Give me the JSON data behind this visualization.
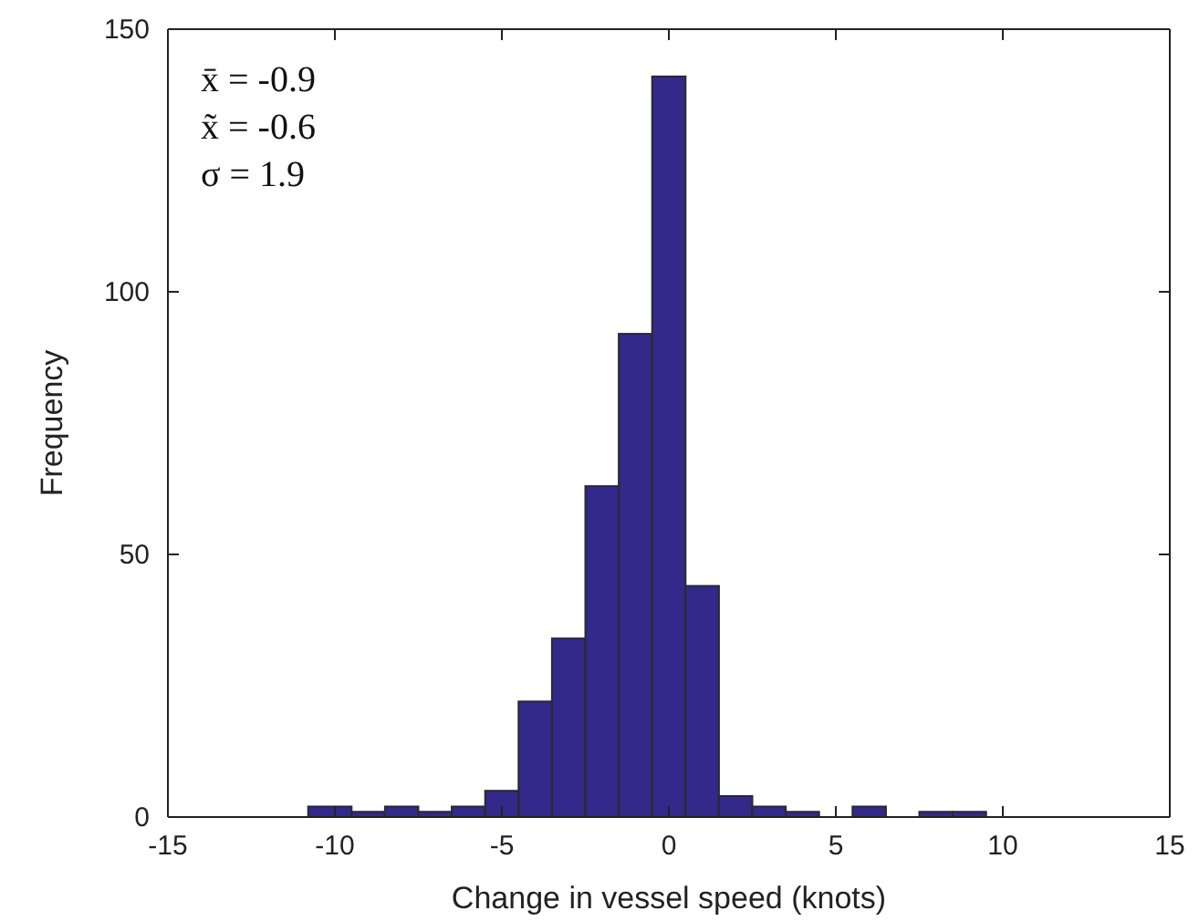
{
  "chart_data": {
    "type": "histogram",
    "xlabel": "Change in vessel speed (knots)",
    "ylabel": "Frequency",
    "annotations": [
      "x̄ = -0.9",
      "x̃ = -0.6",
      "σ = 1.9"
    ],
    "bins": [
      -10.8,
      -9.5,
      -8.5,
      -7.5,
      -6.5,
      -5.5,
      -4.5,
      -3.5,
      -2.5,
      -1.5,
      -0.5,
      0.5,
      1.5,
      2.5,
      3.5,
      4.5,
      5.5,
      6.5,
      7.5,
      8.5,
      9.5
    ],
    "values": [
      2,
      1,
      2,
      1,
      2,
      5,
      22,
      34,
      63,
      92,
      141,
      44,
      4,
      2,
      1,
      0,
      2,
      0,
      1,
      1
    ],
    "color": "#33298a",
    "xlim": [
      -15,
      15
    ],
    "xticks": [
      -15,
      -10,
      -5,
      0,
      5,
      10,
      15
    ],
    "ylim": [
      0,
      150
    ],
    "yticks": [
      0,
      50,
      100,
      150
    ],
    "grid": false
  }
}
